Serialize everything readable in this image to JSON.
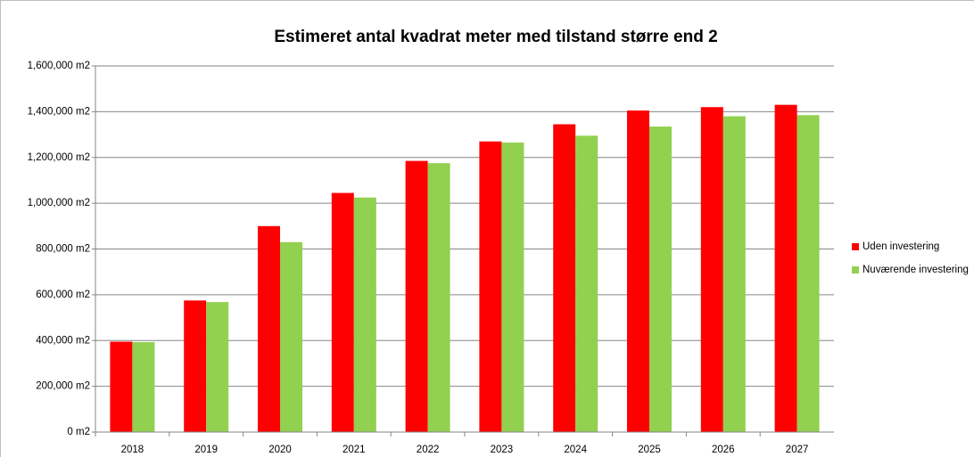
{
  "chart_data": {
    "type": "bar",
    "title": "Estimeret antal kvadrat meter med tilstand større end 2",
    "categories": [
      "2018",
      "2019",
      "2020",
      "2021",
      "2022",
      "2023",
      "2024",
      "2025",
      "2026",
      "2027"
    ],
    "series": [
      {
        "name": "Uden investering",
        "color": "#ff0000",
        "values": [
          395000,
          575000,
          900000,
          1045000,
          1185000,
          1270000,
          1345000,
          1405000,
          1420000,
          1430000
        ]
      },
      {
        "name": "Nuværende investering",
        "color": "#92d050",
        "values": [
          393000,
          568000,
          830000,
          1025000,
          1175000,
          1265000,
          1295000,
          1335000,
          1380000,
          1385000
        ]
      }
    ],
    "ylim": [
      0,
      1600000
    ],
    "yticks": [
      {
        "value": 0,
        "label": "0 m2"
      },
      {
        "value": 200000,
        "label": "200,000 m2"
      },
      {
        "value": 400000,
        "label": "400,000 m2"
      },
      {
        "value": 600000,
        "label": "600,000 m2"
      },
      {
        "value": 800000,
        "label": "800,000 m2"
      },
      {
        "value": 1000000,
        "label": "1,000,000 m2"
      },
      {
        "value": 1200000,
        "label": "1,200,000 m2"
      },
      {
        "value": 1400000,
        "label": "1,400,000 m2"
      },
      {
        "value": 1600000,
        "label": "1,600,000 m2"
      }
    ],
    "grid": true,
    "legend": "right"
  }
}
